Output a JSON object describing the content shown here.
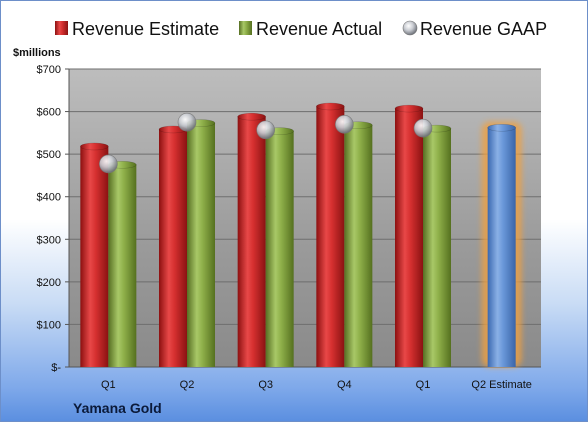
{
  "chart_data": {
    "type": "bar",
    "ylabel": "$millions",
    "categories": [
      "Q1",
      "Q2",
      "Q3",
      "Q4",
      "Q1",
      "Q2 Estimate"
    ],
    "ylim": [
      0,
      700
    ],
    "yticks": [
      0,
      100,
      200,
      300,
      400,
      500,
      600,
      700
    ],
    "ytick_labels": [
      "$-",
      "$100",
      "$200",
      "$300",
      "$400",
      "$500",
      "$600",
      "$700"
    ],
    "series": [
      {
        "name": "Revenue Estimate",
        "type": "bar",
        "color": "#d42a2a",
        "values": [
          518,
          558,
          588,
          612,
          607,
          null
        ]
      },
      {
        "name": "Revenue Actual",
        "type": "bar",
        "color": "#8fb04a",
        "values": [
          475,
          573,
          554,
          568,
          560,
          null
        ]
      },
      {
        "name": "Revenue GAAP",
        "type": "marker",
        "color": "#b8bcc4",
        "values": [
          477,
          575,
          557,
          570,
          561,
          null
        ]
      },
      {
        "name": "Q2 Estimate",
        "type": "bar",
        "color": "#5b8fd6",
        "highlight": "#f0a040",
        "values": [
          null,
          null,
          null,
          null,
          null,
          562
        ]
      }
    ],
    "grid": true,
    "legend_position": "top",
    "footer": "Yamana Gold"
  }
}
